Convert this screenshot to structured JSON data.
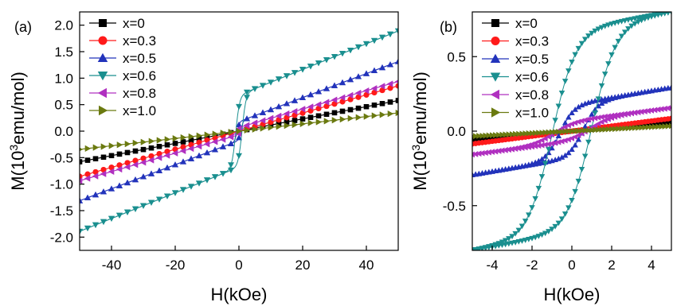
{
  "figure": {
    "panels": [
      "(a)",
      "(b)"
    ]
  },
  "chart_data": [
    {
      "type": "line",
      "panel_label": "(a)",
      "xlabel": "H(kOe)",
      "ylabel_prefix": "M(10",
      "ylabel_sup": "3",
      "ylabel_suffix": "emu/mol)",
      "xlim": [
        -50,
        50
      ],
      "ylim": [
        -2.25,
        2.25
      ],
      "xticks": [
        -40,
        -20,
        0,
        20,
        40
      ],
      "xtick_labels": [
        "-40",
        "-20",
        "0",
        "20",
        "40"
      ],
      "yticks": [
        -2.0,
        -1.5,
        -1.0,
        -0.5,
        0.0,
        0.5,
        1.0,
        1.5,
        2.0
      ],
      "ytick_labels": [
        "-2.0",
        "-1.5",
        "-1.0",
        "-0.5",
        "0.0",
        "0.5",
        "1.0",
        "1.5",
        "2.0"
      ],
      "legend_position": "top-left",
      "grid": false,
      "series": [
        {
          "name": "x=0",
          "color": "#000000",
          "marker": "square",
          "msat": 0.52,
          "hc": 0.05,
          "mr": 0.005,
          "c": 0.0
        },
        {
          "name": "x=0.3",
          "color": "#ff1a1a",
          "marker": "circle",
          "msat": 0.77,
          "hc": 0.05,
          "mr": 0.01,
          "c": 0.0
        },
        {
          "name": "x=0.5",
          "color": "#2233bb",
          "marker": "triangle-up",
          "msat": 1.2,
          "hc": 0.6,
          "mr": 0.08,
          "c": 0.18
        },
        {
          "name": "x=0.6",
          "color": "#1a8f8f",
          "marker": "triangle-down",
          "msat": 1.77,
          "hc": 1.0,
          "mr": 0.3,
          "c": 0.68
        },
        {
          "name": "x=0.8",
          "color": "#b030c0",
          "marker": "triangle-left",
          "msat": 0.85,
          "hc": 0.9,
          "mr": 0.1,
          "c": 0.07
        },
        {
          "name": "x=1.0",
          "color": "#6b7a10",
          "marker": "triangle-right",
          "msat": 0.31,
          "hc": 0.05,
          "mr": 0.005,
          "c": 0.0
        }
      ]
    },
    {
      "type": "line",
      "panel_label": "(b)",
      "xlabel": "H(kOe)",
      "ylabel_prefix": "M(10",
      "ylabel_sup": "3",
      "ylabel_suffix": "emu/mol)",
      "xlim": [
        -5,
        5
      ],
      "ylim": [
        -0.8,
        0.8
      ],
      "xticks": [
        -4,
        -2,
        0,
        2,
        4
      ],
      "xtick_labels": [
        "-4",
        "-2",
        "0",
        "2",
        "4"
      ],
      "yticks": [
        -0.5,
        0.0,
        0.5
      ],
      "ytick_labels": [
        "-0.5",
        "0.0",
        "0.5"
      ],
      "legend_position": "top-left",
      "grid": false,
      "series": [
        {
          "name": "x=0"
        },
        {
          "name": "x=0.3"
        },
        {
          "name": "x=0.5"
        },
        {
          "name": "x=0.6"
        },
        {
          "name": "x=0.8"
        },
        {
          "name": "x=1.0"
        }
      ]
    }
  ]
}
